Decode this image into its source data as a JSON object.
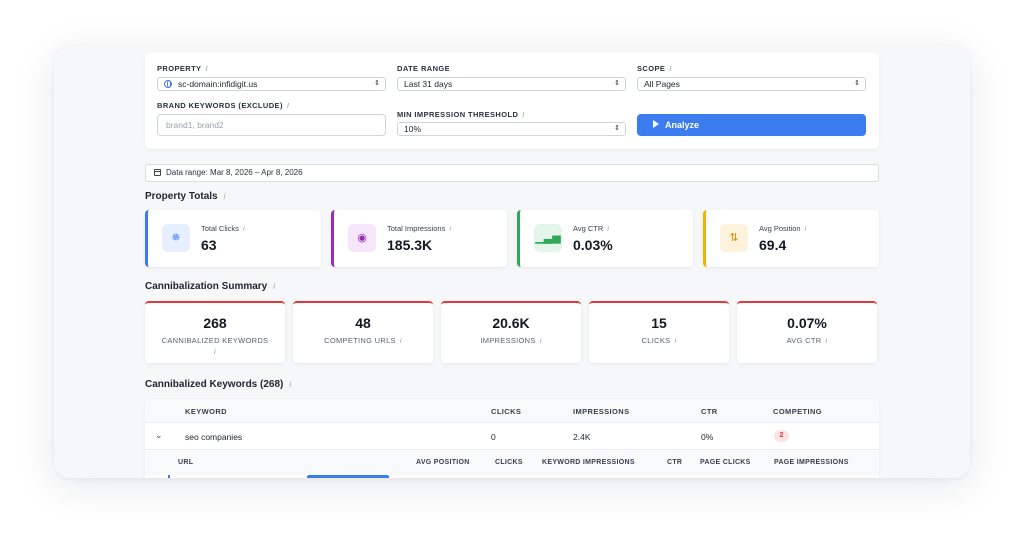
{
  "filters": {
    "property_label": "PROPERTY",
    "property_value": "sc-domain:infidigit.us",
    "date_range_label": "DATE RANGE",
    "date_range_value": "Last 31 days",
    "scope_label": "SCOPE",
    "scope_value": "All Pages",
    "brand_label": "BRAND KEYWORDS (EXCLUDE)",
    "brand_placeholder": "brand1, brand2",
    "threshold_label": "MIN IMPRESSION THRESHOLD",
    "threshold_value": "10%",
    "info_glyph": "i",
    "analyze_label": "Analyze"
  },
  "data_range_text": "Data range: Mar 8, 2026 – Apr 8, 2026",
  "property_totals": {
    "title": "Property Totals",
    "cards": [
      {
        "label": "Total Clicks",
        "value": "63",
        "icon": "click-icon",
        "accent": "#3b7cf0",
        "icon_bg": "#e6efff",
        "icon_color": "#3b7cf0",
        "glyph": "✵"
      },
      {
        "label": "Total Impressions",
        "value": "185.3K",
        "icon": "eye-icon",
        "accent": "#9b2ab8",
        "icon_bg": "#f5e6fa",
        "icon_color": "#9b2ab8",
        "glyph": "◉"
      },
      {
        "label": "Avg CTR",
        "value": "0.03%",
        "icon": "bar-chart-icon",
        "accent": "#2fa85a",
        "icon_bg": "#e4f5ea",
        "icon_color": "#2fa85a",
        "glyph": "▁▃▅"
      },
      {
        "label": "Avg Position",
        "value": "69.4",
        "icon": "sort-arrows-icon",
        "accent": "#f0b400",
        "icon_bg": "#fdf3dc",
        "icon_color": "#e08a00",
        "glyph": "⇅"
      }
    ]
  },
  "cannibalization_summary": {
    "title": "Cannibalization Summary",
    "cards": [
      {
        "value": "268",
        "label": "CANNIBALIZED KEYWORDS"
      },
      {
        "value": "48",
        "label": "COMPETING URLS"
      },
      {
        "value": "20.6K",
        "label": "IMPRESSIONS"
      },
      {
        "value": "15",
        "label": "CLICKS"
      },
      {
        "value": "0.07%",
        "label": "AVG CTR"
      }
    ]
  },
  "keywords_table": {
    "title": "Cannibalized Keywords (268)",
    "columns": [
      "KEYWORD",
      "CLICKS",
      "IMPRESSIONS",
      "CTR",
      "COMPETING"
    ],
    "rows": [
      {
        "keyword": "seo companies",
        "clicks": "0",
        "impressions": "2.4K",
        "ctr": "0%",
        "competing": "2"
      }
    ],
    "sub_columns": [
      "URL",
      "AVG POSITION",
      "CLICKS",
      "KEYWORD IMPRESSIONS",
      "CTR",
      "PAGE CLICKS",
      "PAGE IMPRESSIONS"
    ]
  }
}
